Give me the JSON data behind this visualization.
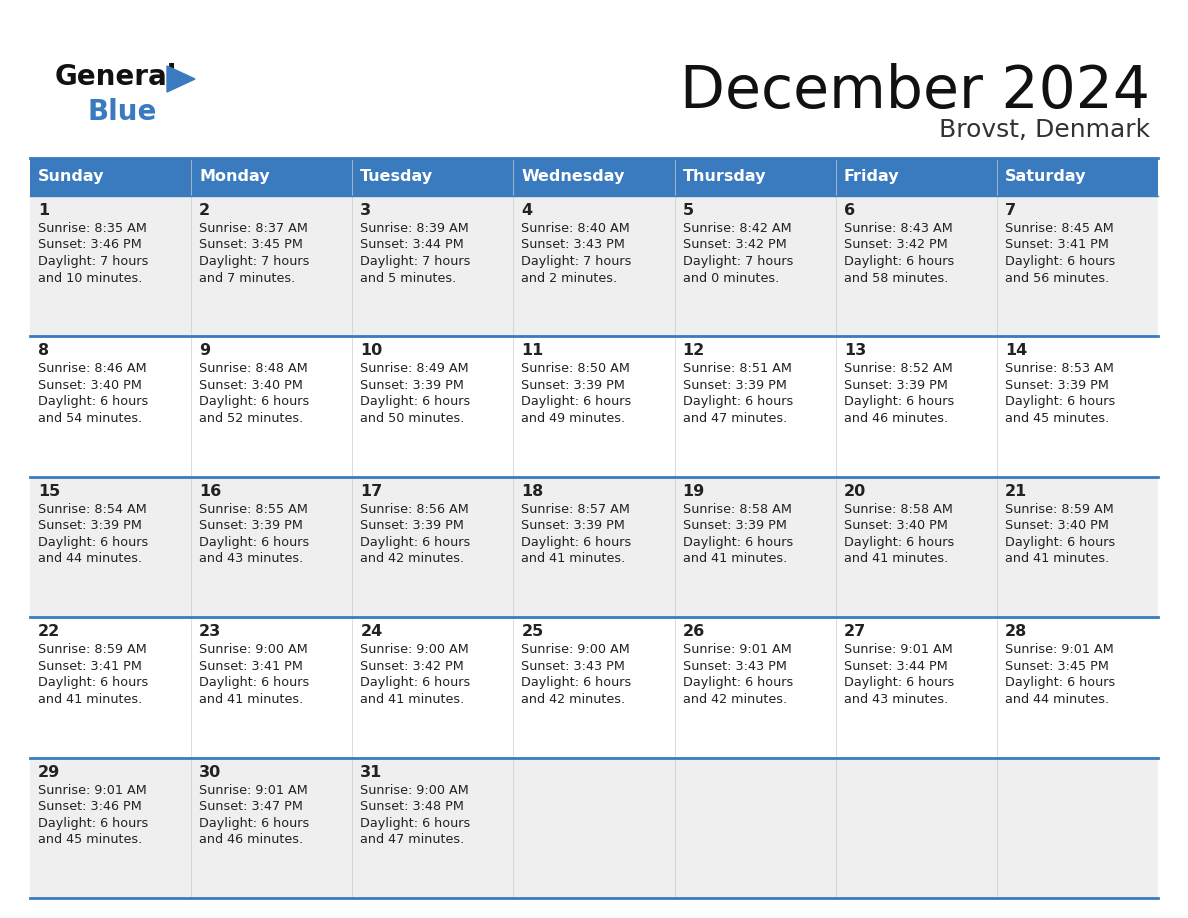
{
  "title": "December 2024",
  "subtitle": "Brovst, Denmark",
  "header_bg": "#3a7bbf",
  "header_text": "#ffffff",
  "cell_bg_odd": "#efefef",
  "cell_bg_even": "#ffffff",
  "row_line_color": "#3a7bbf",
  "text_color": "#222222",
  "days_of_week": [
    "Sunday",
    "Monday",
    "Tuesday",
    "Wednesday",
    "Thursday",
    "Friday",
    "Saturday"
  ],
  "weeks": [
    [
      {
        "day": "1",
        "sunrise": "8:35 AM",
        "sunset": "3:46 PM",
        "daylight": "7 hours\nand 10 minutes."
      },
      {
        "day": "2",
        "sunrise": "8:37 AM",
        "sunset": "3:45 PM",
        "daylight": "7 hours\nand 7 minutes."
      },
      {
        "day": "3",
        "sunrise": "8:39 AM",
        "sunset": "3:44 PM",
        "daylight": "7 hours\nand 5 minutes."
      },
      {
        "day": "4",
        "sunrise": "8:40 AM",
        "sunset": "3:43 PM",
        "daylight": "7 hours\nand 2 minutes."
      },
      {
        "day": "5",
        "sunrise": "8:42 AM",
        "sunset": "3:42 PM",
        "daylight": "7 hours\nand 0 minutes."
      },
      {
        "day": "6",
        "sunrise": "8:43 AM",
        "sunset": "3:42 PM",
        "daylight": "6 hours\nand 58 minutes."
      },
      {
        "day": "7",
        "sunrise": "8:45 AM",
        "sunset": "3:41 PM",
        "daylight": "6 hours\nand 56 minutes."
      }
    ],
    [
      {
        "day": "8",
        "sunrise": "8:46 AM",
        "sunset": "3:40 PM",
        "daylight": "6 hours\nand 54 minutes."
      },
      {
        "day": "9",
        "sunrise": "8:48 AM",
        "sunset": "3:40 PM",
        "daylight": "6 hours\nand 52 minutes."
      },
      {
        "day": "10",
        "sunrise": "8:49 AM",
        "sunset": "3:39 PM",
        "daylight": "6 hours\nand 50 minutes."
      },
      {
        "day": "11",
        "sunrise": "8:50 AM",
        "sunset": "3:39 PM",
        "daylight": "6 hours\nand 49 minutes."
      },
      {
        "day": "12",
        "sunrise": "8:51 AM",
        "sunset": "3:39 PM",
        "daylight": "6 hours\nand 47 minutes."
      },
      {
        "day": "13",
        "sunrise": "8:52 AM",
        "sunset": "3:39 PM",
        "daylight": "6 hours\nand 46 minutes."
      },
      {
        "day": "14",
        "sunrise": "8:53 AM",
        "sunset": "3:39 PM",
        "daylight": "6 hours\nand 45 minutes."
      }
    ],
    [
      {
        "day": "15",
        "sunrise": "8:54 AM",
        "sunset": "3:39 PM",
        "daylight": "6 hours\nand 44 minutes."
      },
      {
        "day": "16",
        "sunrise": "8:55 AM",
        "sunset": "3:39 PM",
        "daylight": "6 hours\nand 43 minutes."
      },
      {
        "day": "17",
        "sunrise": "8:56 AM",
        "sunset": "3:39 PM",
        "daylight": "6 hours\nand 42 minutes."
      },
      {
        "day": "18",
        "sunrise": "8:57 AM",
        "sunset": "3:39 PM",
        "daylight": "6 hours\nand 41 minutes."
      },
      {
        "day": "19",
        "sunrise": "8:58 AM",
        "sunset": "3:39 PM",
        "daylight": "6 hours\nand 41 minutes."
      },
      {
        "day": "20",
        "sunrise": "8:58 AM",
        "sunset": "3:40 PM",
        "daylight": "6 hours\nand 41 minutes."
      },
      {
        "day": "21",
        "sunrise": "8:59 AM",
        "sunset": "3:40 PM",
        "daylight": "6 hours\nand 41 minutes."
      }
    ],
    [
      {
        "day": "22",
        "sunrise": "8:59 AM",
        "sunset": "3:41 PM",
        "daylight": "6 hours\nand 41 minutes."
      },
      {
        "day": "23",
        "sunrise": "9:00 AM",
        "sunset": "3:41 PM",
        "daylight": "6 hours\nand 41 minutes."
      },
      {
        "day": "24",
        "sunrise": "9:00 AM",
        "sunset": "3:42 PM",
        "daylight": "6 hours\nand 41 minutes."
      },
      {
        "day": "25",
        "sunrise": "9:00 AM",
        "sunset": "3:43 PM",
        "daylight": "6 hours\nand 42 minutes."
      },
      {
        "day": "26",
        "sunrise": "9:01 AM",
        "sunset": "3:43 PM",
        "daylight": "6 hours\nand 42 minutes."
      },
      {
        "day": "27",
        "sunrise": "9:01 AM",
        "sunset": "3:44 PM",
        "daylight": "6 hours\nand 43 minutes."
      },
      {
        "day": "28",
        "sunrise": "9:01 AM",
        "sunset": "3:45 PM",
        "daylight": "6 hours\nand 44 minutes."
      }
    ],
    [
      {
        "day": "29",
        "sunrise": "9:01 AM",
        "sunset": "3:46 PM",
        "daylight": "6 hours\nand 45 minutes."
      },
      {
        "day": "30",
        "sunrise": "9:01 AM",
        "sunset": "3:47 PM",
        "daylight": "6 hours\nand 46 minutes."
      },
      {
        "day": "31",
        "sunrise": "9:00 AM",
        "sunset": "3:48 PM",
        "daylight": "6 hours\nand 47 minutes."
      },
      null,
      null,
      null,
      null
    ]
  ]
}
